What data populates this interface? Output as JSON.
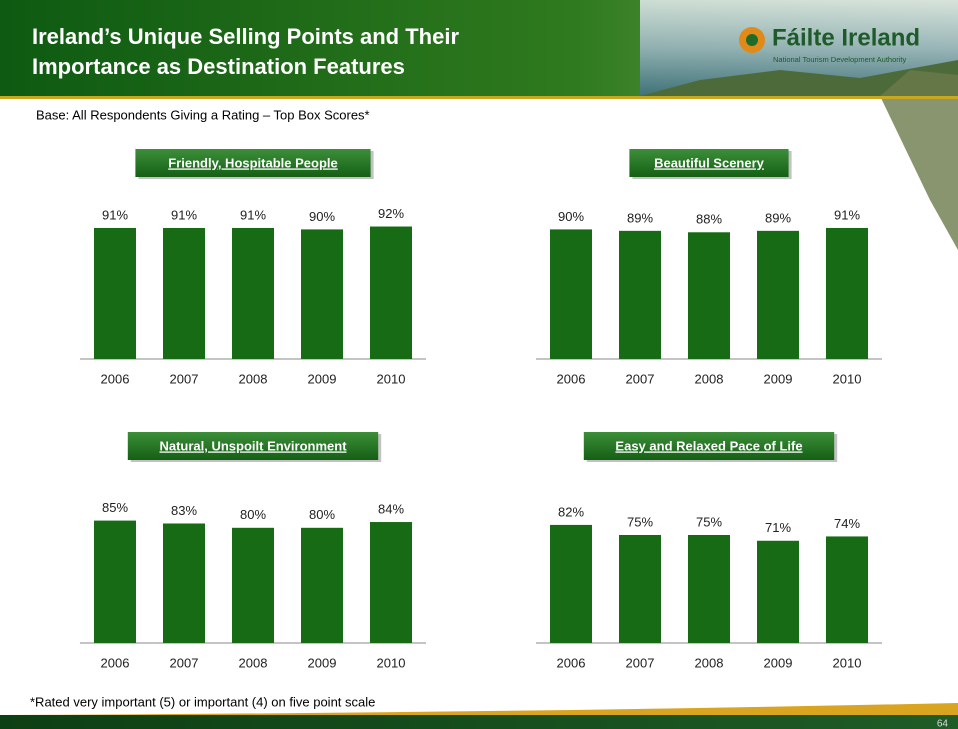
{
  "header": {
    "title_lines": [
      "Ireland’s Unique Selling Points and Their",
      "Importance as Destination Features"
    ],
    "logo": "Fáilte Ireland",
    "logo_tagline": "National Tourism Development Authority"
  },
  "base_note": "Base: All Respondents  Giving a Rating – Top Box Scores*",
  "footnote": "*Rated very important (5) or important (4) on five point scale",
  "page_number": "64",
  "chart_data": [
    {
      "type": "bar",
      "title": "Friendly, Hospitable People",
      "categories": [
        "2006",
        "2007",
        "2008",
        "2009",
        "2010"
      ],
      "values": [
        91,
        91,
        91,
        90,
        92
      ],
      "value_labels": [
        "91%",
        "91%",
        "91%",
        "90%",
        "92%"
      ],
      "color": "#166b14"
    },
    {
      "type": "bar",
      "title": "Beautiful Scenery",
      "categories": [
        "2006",
        "2007",
        "2008",
        "2009",
        "2010"
      ],
      "values": [
        90,
        89,
        88,
        89,
        91
      ],
      "value_labels": [
        "90%",
        "89%",
        "88%",
        "89%",
        "91%"
      ],
      "color": "#166b14"
    },
    {
      "type": "bar",
      "title": "Natural, Unspoilt Environment",
      "categories": [
        "2006",
        "2007",
        "2008",
        "2009",
        "2010"
      ],
      "values": [
        85,
        83,
        80,
        80,
        84
      ],
      "value_labels": [
        "85%",
        "83%",
        "80%",
        "80%",
        "84%"
      ],
      "color": "#166b14"
    },
    {
      "type": "bar",
      "title": "Easy and Relaxed Pace of Life",
      "categories": [
        "2006",
        "2007",
        "2008",
        "2009",
        "2010"
      ],
      "values": [
        82,
        75,
        75,
        71,
        74
      ],
      "value_labels": [
        "82%",
        "75%",
        "75%",
        "71%",
        "74%"
      ],
      "color": "#166b14"
    }
  ]
}
